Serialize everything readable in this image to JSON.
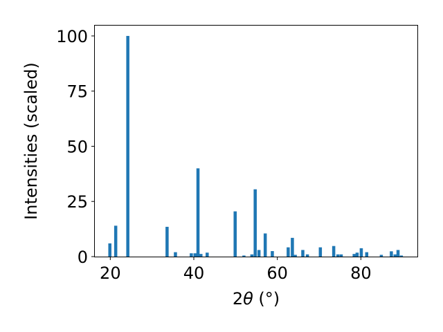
{
  "chart_data": {
    "type": "bar",
    "xlabel_prefix": "2",
    "xlabel_symbol": "θ",
    "xlabel_unit": " (°)",
    "ylabel": "Intensities (scaled)",
    "xlim": [
      16.3,
      93.7
    ],
    "ylim": [
      0,
      105
    ],
    "xticks": [
      20,
      40,
      60,
      80
    ],
    "yticks": [
      0,
      25,
      50,
      75,
      100
    ],
    "bar_color": "#1f77b4",
    "bar_width": 0.75,
    "x": [
      19.9,
      21.3,
      24.2,
      33.6,
      35.6,
      39.4,
      40.3,
      41.0,
      41.7,
      43.2,
      49.9,
      52.0,
      53.9,
      54.7,
      55.6,
      57.1,
      58.8,
      62.6,
      63.6,
      64.3,
      66.1,
      67.2,
      70.3,
      73.5,
      74.5,
      75.3,
      78.4,
      79.1,
      80.1,
      81.4,
      84.9,
      87.3,
      88.2,
      88.9,
      89.7
    ],
    "values": [
      6,
      14,
      100,
      13.5,
      2,
      1.5,
      1.5,
      40,
      1.2,
      1.8,
      20.5,
      0.5,
      1,
      30.5,
      3,
      10.5,
      2.5,
      4.2,
      8.5,
      0.8,
      3,
      1,
      4.2,
      4.8,
      1,
      1,
      1.2,
      1.8,
      3.8,
      2,
      0.8,
      2.4,
      1,
      3,
      0.5
    ]
  }
}
